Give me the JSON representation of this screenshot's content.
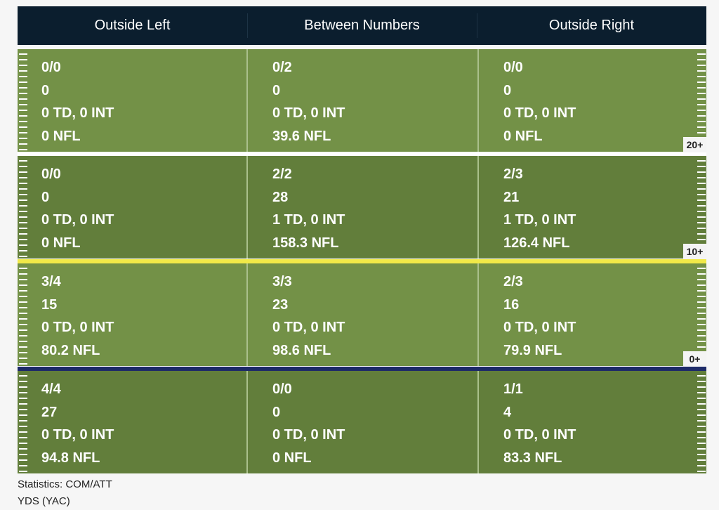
{
  "columns": [
    "Outside Left",
    "Between Numbers",
    "Outside Right"
  ],
  "rows": [
    {
      "shade": "light",
      "cells": [
        [
          "0/0",
          "0",
          "0 TD, 0 INT",
          "0 NFL"
        ],
        [
          "0/2",
          "0",
          "0 TD, 0 INT",
          "39.6 NFL"
        ],
        [
          "0/0",
          "0",
          "0 TD, 0 INT",
          "0 NFL"
        ]
      ]
    },
    {
      "shade": "dark",
      "cells": [
        [
          "0/0",
          "0",
          "0 TD, 0 INT",
          "0 NFL"
        ],
        [
          "2/2",
          "28",
          "1 TD, 0 INT",
          "158.3 NFL"
        ],
        [
          "2/3",
          "21",
          "1 TD, 0 INT",
          "126.4 NFL"
        ]
      ]
    },
    {
      "shade": "light",
      "cells": [
        [
          "3/4",
          "15",
          "0 TD, 0 INT",
          "80.2 NFL"
        ],
        [
          "3/3",
          "23",
          "0 TD, 0 INT",
          "98.6 NFL"
        ],
        [
          "2/3",
          "16",
          "0 TD, 0 INT",
          "79.9 NFL"
        ]
      ]
    },
    {
      "shade": "dark",
      "cells": [
        [
          "4/4",
          "27",
          "0 TD, 0 INT",
          "94.8 NFL"
        ],
        [
          "0/0",
          "0",
          "0 TD, 0 INT",
          "0 NFL"
        ],
        [
          "1/1",
          "4",
          "0 TD, 0 INT",
          "83.3 NFL"
        ]
      ]
    }
  ],
  "dividers": [
    {
      "label": "20+",
      "color": "#ffffff"
    },
    {
      "label": "10+",
      "color": "#f1e948"
    },
    {
      "label": "0+",
      "color": "#1d2a68"
    }
  ],
  "legend": {
    "line1": "Statistics: COM/ATT",
    "line2": "YDS (YAC)"
  },
  "colors": {
    "header_bg": "#0b1e2e",
    "field_light": "#739147",
    "field_dark": "#627e3b",
    "first_down_line": "#f1e948",
    "line_of_scrimmage": "#1d2a68"
  }
}
